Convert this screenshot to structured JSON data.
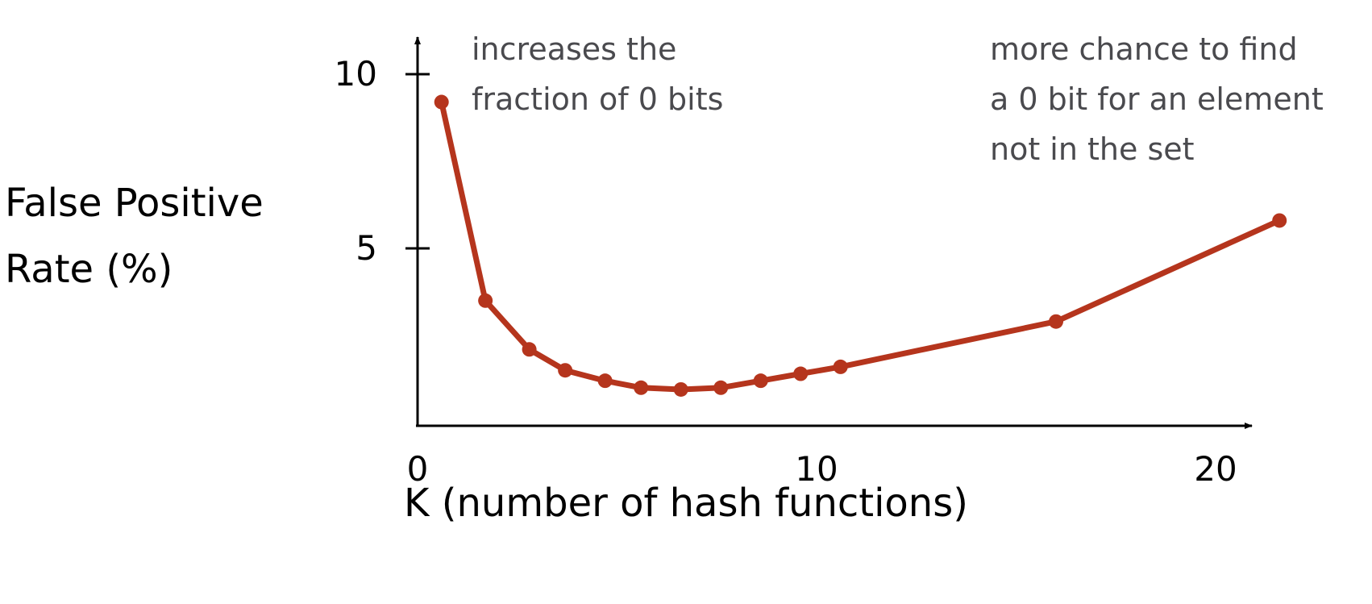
{
  "chart_data": {
    "type": "line",
    "title": "",
    "xlabel": "K (number of hash functions)",
    "ylabel": [
      "False Positive",
      "Rate (%)"
    ],
    "xlim": [
      0,
      21
    ],
    "ylim": [
      0,
      11
    ],
    "x_ticks": [
      0,
      10,
      20
    ],
    "y_ticks": [
      5,
      10
    ],
    "grid": false,
    "legend": "none",
    "color": "#b5351d",
    "series": [
      {
        "x": [
          0.6,
          1.7,
          2.8,
          3.7,
          4.7,
          5.6,
          6.6,
          7.6,
          8.6,
          9.6,
          10.6,
          16.0,
          21.6
        ],
        "values": [
          9.2,
          3.5,
          2.1,
          1.5,
          1.2,
          1.0,
          0.95,
          1.0,
          1.2,
          1.4,
          1.6,
          2.9,
          5.8
        ]
      }
    ],
    "annotations": [
      {
        "lines": [
          "increases the",
          "fraction of 0 bits"
        ]
      },
      {
        "lines": [
          "more chance to find",
          "a 0 bit for an element",
          "not in the set"
        ]
      }
    ]
  }
}
